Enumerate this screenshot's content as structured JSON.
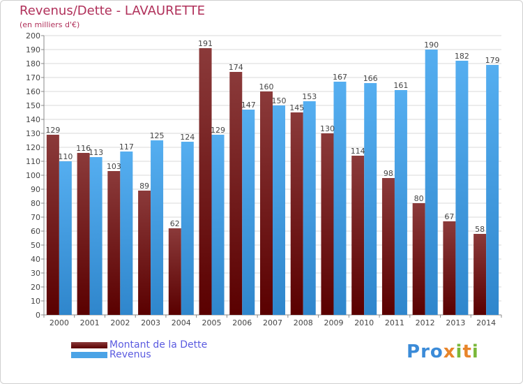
{
  "title": "Revenus/Dette - LAVAURETTE",
  "subtitle": "(en milliers d'€)",
  "legend": {
    "debt": "Montant de la Dette",
    "revenue": "Revenus"
  },
  "logo": {
    "letters": [
      "P",
      "r",
      "o",
      "x",
      "i",
      "t",
      "i"
    ]
  },
  "colors": {
    "debt_top": "#8b3a3a",
    "debt_bottom": "#5a0000",
    "revenue": "#4aa3e6",
    "grid": "#d9d9d9",
    "title": "#b0305a",
    "legend_text": "#5a5ae0"
  },
  "chart_data": {
    "type": "bar",
    "title": "Revenus/Dette - LAVAURETTE",
    "ylabel": "(en milliers d'€)",
    "categories": [
      "2000",
      "2001",
      "2002",
      "2003",
      "2004",
      "2005",
      "2006",
      "2007",
      "2008",
      "2009",
      "2010",
      "2011",
      "2012",
      "2013",
      "2014"
    ],
    "series": [
      {
        "name": "Montant de la Dette",
        "values": [
          129,
          116,
          103,
          89,
          62,
          191,
          174,
          160,
          145,
          130,
          114,
          98,
          80,
          67,
          58
        ]
      },
      {
        "name": "Revenus",
        "values": [
          110,
          113,
          117,
          125,
          124,
          129,
          147,
          150,
          153,
          167,
          166,
          161,
          190,
          182,
          179
        ]
      }
    ],
    "ylim": [
      0,
      200
    ],
    "ytick_step": 10,
    "grid": true,
    "legend_position": "bottom-left"
  }
}
